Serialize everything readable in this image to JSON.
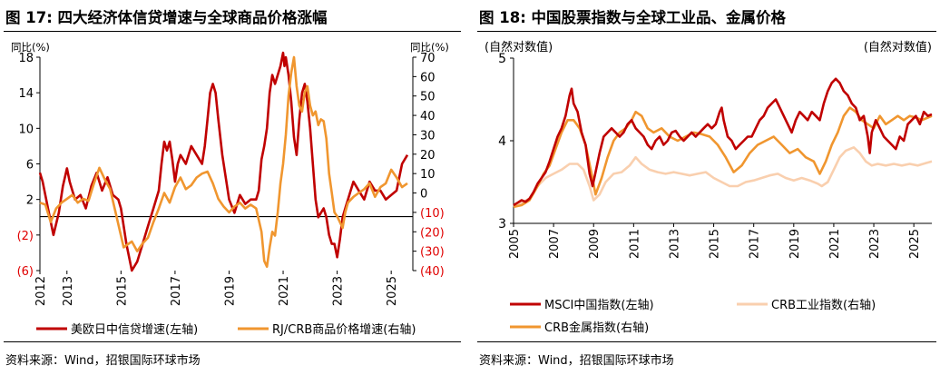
{
  "left_panel": {
    "title": "图 17: 四大经济体信贷增速与全球商品价格涨幅",
    "source": "资料来源：Wind，招银国际环球市场"
  },
  "right_panel": {
    "title": "图 18: 中国股票指数与全球工业品、金属价格",
    "source": "资料来源：Wind，招银国际环球市场"
  },
  "chart_data": [
    {
      "type": "line",
      "title": "",
      "ylabel_left": "同比(%)",
      "ylabel_right": "同比(%)",
      "ylim_left": [
        -6,
        18
      ],
      "ylim_right": [
        -40,
        70
      ],
      "left_ticks": [
        18,
        14,
        10,
        6,
        2,
        -2,
        -6
      ],
      "left_tick_labels": [
        "18",
        "14",
        "10",
        "6",
        "2",
        "(2)",
        "(6)"
      ],
      "right_ticks": [
        70,
        60,
        50,
        40,
        30,
        20,
        10,
        0,
        -10,
        -20,
        -30,
        -40
      ],
      "right_tick_labels": [
        "70",
        "60",
        "50",
        "40",
        "30",
        "20",
        "10",
        "0",
        "(10)",
        "(20)",
        "(30)",
        "(40)"
      ],
      "negative_color": "#e00000",
      "xlim": [
        2012.0,
        2025.8
      ],
      "x_ticks": [
        2012,
        2013,
        2015,
        2017,
        2019,
        2021,
        2023,
        2025
      ],
      "grid": false,
      "legend_position": "bottom",
      "series": [
        {
          "name": "美欧日中信贷增速(左轴)",
          "axis": "left",
          "color": "#c00000",
          "x": [
            2012.0,
            2012.1,
            2012.3,
            2012.5,
            2012.7,
            2012.85,
            2013.0,
            2013.1,
            2013.3,
            2013.5,
            2013.7,
            2013.9,
            2014.1,
            2014.3,
            2014.5,
            2014.7,
            2014.9,
            2015.0,
            2015.1,
            2015.2,
            2015.4,
            2015.6,
            2015.8,
            2016.0,
            2016.2,
            2016.4,
            2016.5,
            2016.6,
            2016.7,
            2016.8,
            2016.9,
            2017.0,
            2017.1,
            2017.2,
            2017.4,
            2017.6,
            2017.8,
            2018.0,
            2018.1,
            2018.2,
            2018.3,
            2018.4,
            2018.5,
            2018.6,
            2018.75,
            2018.9,
            2019.0,
            2019.2,
            2019.4,
            2019.6,
            2019.8,
            2020.0,
            2020.1,
            2020.2,
            2020.3,
            2020.4,
            2020.5,
            2020.6,
            2020.7,
            2020.8,
            2020.9,
            2021.0,
            2021.05,
            2021.1,
            2021.2,
            2021.3,
            2021.4,
            2021.5,
            2021.6,
            2021.7,
            2021.8,
            2021.9,
            2022.0,
            2022.1,
            2022.2,
            2022.3,
            2022.4,
            2022.5,
            2022.6,
            2022.7,
            2022.8,
            2022.9,
            2023.0,
            2023.1,
            2023.2,
            2023.3,
            2023.4,
            2023.5,
            2023.6,
            2023.8,
            2024.0,
            2024.2,
            2024.4,
            2024.6,
            2024.8,
            2025.0,
            2025.2,
            2025.4,
            2025.6
          ],
          "y": [
            5.0,
            4.0,
            1.0,
            -2.0,
            0.5,
            3.5,
            5.5,
            4.0,
            2.0,
            2.5,
            1.0,
            3.5,
            5.0,
            3.0,
            4.5,
            2.5,
            2.0,
            1.0,
            -1.0,
            -3.0,
            -6.0,
            -5.0,
            -3.0,
            -1.0,
            1.0,
            3.0,
            6.0,
            8.5,
            7.5,
            8.5,
            6.5,
            4.0,
            6.0,
            7.0,
            6.0,
            8.0,
            7.0,
            6.0,
            8.0,
            11.0,
            14.0,
            15.0,
            14.0,
            11.0,
            7.0,
            4.0,
            2.0,
            0.5,
            2.5,
            1.5,
            2.0,
            2.0,
            3.0,
            6.5,
            8.0,
            10.0,
            14.0,
            16.0,
            15.0,
            16.0,
            17.0,
            18.5,
            17.0,
            18.0,
            16.0,
            13.0,
            9.0,
            7.0,
            11.0,
            14.0,
            15.0,
            13.0,
            10.0,
            6.0,
            2.0,
            0.0,
            0.5,
            1.0,
            0.0,
            -2.0,
            -3.0,
            -3.0,
            -4.5,
            -2.5,
            0.0,
            1.0,
            2.0,
            3.0,
            4.0,
            3.0,
            2.0,
            4.0,
            3.0,
            3.0,
            2.0,
            2.5,
            3.0,
            6.0,
            7.0
          ]
        },
        {
          "name": "RJ/CRB商品价格增速(右轴)",
          "axis": "right",
          "color": "#f0962f",
          "x": [
            2012.0,
            2012.2,
            2012.4,
            2012.6,
            2012.8,
            2013.0,
            2013.2,
            2013.4,
            2013.6,
            2013.8,
            2014.0,
            2014.2,
            2014.4,
            2014.6,
            2014.8,
            2015.0,
            2015.1,
            2015.2,
            2015.4,
            2015.6,
            2015.8,
            2016.0,
            2016.2,
            2016.4,
            2016.6,
            2016.8,
            2017.0,
            2017.2,
            2017.4,
            2017.6,
            2017.8,
            2018.0,
            2018.2,
            2018.4,
            2018.6,
            2018.8,
            2019.0,
            2019.2,
            2019.4,
            2019.6,
            2019.8,
            2020.0,
            2020.2,
            2020.3,
            2020.4,
            2020.5,
            2020.6,
            2020.7,
            2020.8,
            2020.9,
            2021.0,
            2021.1,
            2021.2,
            2021.3,
            2021.4,
            2021.5,
            2021.6,
            2021.7,
            2021.8,
            2021.9,
            2022.0,
            2022.1,
            2022.2,
            2022.3,
            2022.4,
            2022.5,
            2022.6,
            2022.7,
            2022.8,
            2022.9,
            2023.0,
            2023.1,
            2023.2,
            2023.3,
            2023.4,
            2023.6,
            2023.8,
            2024.0,
            2024.2,
            2024.4,
            2024.6,
            2024.8,
            2025.0,
            2025.2,
            2025.4,
            2025.6
          ],
          "y": [
            -5.0,
            -6.0,
            -15.0,
            -8.0,
            -5.0,
            -3.0,
            -1.0,
            -5.0,
            -3.0,
            -4.0,
            5.0,
            13.0,
            7.0,
            2.0,
            -10.0,
            -22.0,
            -28.0,
            -27.0,
            -25.0,
            -30.0,
            -26.0,
            -23.0,
            -15.0,
            -8.0,
            0.0,
            -5.0,
            3.0,
            8.0,
            2.0,
            4.0,
            8.0,
            10.0,
            11.0,
            5.0,
            -3.0,
            -7.0,
            -10.0,
            -7.0,
            -5.0,
            -8.0,
            -6.0,
            -8.0,
            -20.0,
            -35.0,
            -38.0,
            -28.0,
            -20.0,
            -22.0,
            -10.0,
            5.0,
            15.0,
            30.0,
            50.0,
            62.0,
            70.0,
            55.0,
            45.0,
            42.0,
            52.0,
            55.0,
            45.0,
            40.0,
            42.0,
            35.0,
            38.0,
            37.0,
            28.0,
            10.0,
            0.0,
            -10.0,
            -12.0,
            -15.0,
            -18.0,
            -10.0,
            -5.0,
            -2.0,
            0.0,
            2.0,
            5.0,
            -2.0,
            3.0,
            5.0,
            12.0,
            8.0,
            3.0,
            5.0
          ]
        }
      ]
    },
    {
      "type": "line",
      "title": "",
      "ylabel_left": "(自然对数值)",
      "ylabel_right": "(自然对数值)",
      "ylim": [
        3,
        5
      ],
      "y_ticks": [
        3,
        4,
        5
      ],
      "xlim": [
        2005.0,
        2025.9
      ],
      "x_ticks": [
        2005,
        2007,
        2009,
        2011,
        2013,
        2015,
        2017,
        2019,
        2021,
        2023,
        2025
      ],
      "grid": false,
      "legend_position": "bottom",
      "series": [
        {
          "name": "MSCI中国指数(左轴)",
          "axis": "left",
          "color": "#c00000",
          "x": [
            2005.0,
            2005.2,
            2005.4,
            2005.6,
            2005.8,
            2006.0,
            2006.2,
            2006.4,
            2006.6,
            2006.8,
            2007.0,
            2007.2,
            2007.4,
            2007.6,
            2007.8,
            2007.9,
            2008.0,
            2008.2,
            2008.4,
            2008.6,
            2008.8,
            2008.95,
            2009.1,
            2009.3,
            2009.5,
            2009.7,
            2009.9,
            2010.1,
            2010.3,
            2010.5,
            2010.7,
            2010.9,
            2011.1,
            2011.3,
            2011.5,
            2011.7,
            2011.9,
            2012.1,
            2012.3,
            2012.5,
            2012.7,
            2012.9,
            2013.1,
            2013.3,
            2013.5,
            2013.7,
            2013.9,
            2014.1,
            2014.3,
            2014.5,
            2014.7,
            2014.9,
            2015.1,
            2015.3,
            2015.4,
            2015.5,
            2015.7,
            2015.9,
            2016.1,
            2016.3,
            2016.5,
            2016.7,
            2016.9,
            2017.1,
            2017.3,
            2017.5,
            2017.7,
            2017.9,
            2018.1,
            2018.3,
            2018.5,
            2018.7,
            2018.9,
            2019.1,
            2019.3,
            2019.5,
            2019.7,
            2019.9,
            2020.1,
            2020.3,
            2020.5,
            2020.7,
            2020.9,
            2021.1,
            2021.3,
            2021.5,
            2021.7,
            2021.9,
            2022.1,
            2022.3,
            2022.5,
            2022.7,
            2022.8,
            2022.9,
            2023.1,
            2023.3,
            2023.5,
            2023.7,
            2023.9,
            2024.1,
            2024.3,
            2024.5,
            2024.7,
            2024.9,
            2025.1,
            2025.3,
            2025.5,
            2025.7,
            2025.9
          ],
          "y": [
            3.22,
            3.25,
            3.28,
            3.26,
            3.3,
            3.38,
            3.48,
            3.55,
            3.62,
            3.75,
            3.9,
            4.05,
            4.15,
            4.3,
            4.55,
            4.63,
            4.45,
            4.35,
            4.1,
            3.95,
            3.6,
            3.45,
            3.62,
            3.85,
            4.05,
            4.1,
            4.15,
            4.1,
            4.05,
            4.1,
            4.2,
            4.25,
            4.15,
            4.1,
            4.05,
            3.95,
            3.9,
            4.0,
            4.05,
            3.95,
            4.0,
            4.1,
            4.12,
            4.05,
            4.0,
            4.05,
            4.1,
            4.05,
            4.1,
            4.15,
            4.2,
            4.15,
            4.2,
            4.35,
            4.4,
            4.25,
            4.05,
            4.0,
            3.9,
            3.95,
            4.0,
            4.05,
            4.05,
            4.15,
            4.25,
            4.3,
            4.4,
            4.45,
            4.5,
            4.4,
            4.3,
            4.2,
            4.1,
            4.25,
            4.35,
            4.3,
            4.25,
            4.35,
            4.3,
            4.25,
            4.45,
            4.6,
            4.7,
            4.75,
            4.7,
            4.6,
            4.55,
            4.45,
            4.4,
            4.25,
            4.3,
            4.05,
            3.85,
            4.1,
            4.25,
            4.15,
            4.05,
            4.0,
            3.95,
            3.9,
            4.05,
            4.0,
            4.2,
            4.25,
            4.3,
            4.2,
            4.35,
            4.3,
            4.32
          ]
        },
        {
          "name": "CRB工业指数(右轴)",
          "axis": "right",
          "color": "#f9cfae",
          "x": [
            2005.0,
            2005.4,
            2005.8,
            2006.2,
            2006.6,
            2007.0,
            2007.4,
            2007.8,
            2008.2,
            2008.5,
            2008.8,
            2009.0,
            2009.3,
            2009.6,
            2010.0,
            2010.4,
            2010.8,
            2011.1,
            2011.4,
            2011.8,
            2012.2,
            2012.6,
            2013.0,
            2013.4,
            2013.8,
            2014.2,
            2014.6,
            2015.0,
            2015.4,
            2015.8,
            2016.2,
            2016.6,
            2017.0,
            2017.4,
            2017.8,
            2018.2,
            2018.6,
            2019.0,
            2019.4,
            2019.8,
            2020.2,
            2020.4,
            2020.7,
            2021.0,
            2021.3,
            2021.6,
            2022.0,
            2022.3,
            2022.6,
            2022.9,
            2023.2,
            2023.6,
            2024.0,
            2024.4,
            2024.8,
            2025.2,
            2025.6,
            2025.9
          ],
          "y": [
            3.2,
            3.25,
            3.3,
            3.45,
            3.55,
            3.6,
            3.65,
            3.72,
            3.72,
            3.65,
            3.45,
            3.28,
            3.35,
            3.5,
            3.6,
            3.62,
            3.7,
            3.8,
            3.72,
            3.65,
            3.62,
            3.6,
            3.62,
            3.6,
            3.58,
            3.6,
            3.62,
            3.55,
            3.5,
            3.45,
            3.45,
            3.5,
            3.52,
            3.55,
            3.58,
            3.6,
            3.55,
            3.52,
            3.55,
            3.52,
            3.48,
            3.45,
            3.5,
            3.65,
            3.8,
            3.88,
            3.92,
            3.85,
            3.75,
            3.7,
            3.72,
            3.7,
            3.72,
            3.7,
            3.72,
            3.7,
            3.73,
            3.75
          ]
        },
        {
          "name": "CRB金属指数(右轴)",
          "axis": "right",
          "color": "#f0962f",
          "x": [
            2005.0,
            2005.4,
            2005.8,
            2006.2,
            2006.5,
            2006.8,
            2007.1,
            2007.4,
            2007.7,
            2008.0,
            2008.3,
            2008.6,
            2008.9,
            2009.1,
            2009.4,
            2009.7,
            2010.0,
            2010.3,
            2010.6,
            2010.9,
            2011.1,
            2011.4,
            2011.7,
            2012.0,
            2012.4,
            2012.8,
            2013.2,
            2013.6,
            2014.0,
            2014.4,
            2014.8,
            2015.2,
            2015.6,
            2016.0,
            2016.4,
            2016.8,
            2017.2,
            2017.6,
            2018.0,
            2018.4,
            2018.8,
            2019.2,
            2019.6,
            2020.0,
            2020.3,
            2020.6,
            2020.9,
            2021.2,
            2021.5,
            2021.8,
            2022.1,
            2022.4,
            2022.7,
            2023.0,
            2023.3,
            2023.6,
            2023.9,
            2024.2,
            2024.5,
            2024.8,
            2025.1,
            2025.4,
            2025.7,
            2025.9
          ],
          "y": [
            3.2,
            3.22,
            3.28,
            3.45,
            3.6,
            3.7,
            3.9,
            4.1,
            4.25,
            4.25,
            4.15,
            3.95,
            3.6,
            3.35,
            3.55,
            3.8,
            4.0,
            4.1,
            4.15,
            4.25,
            4.35,
            4.3,
            4.15,
            4.1,
            4.15,
            4.05,
            4.0,
            4.05,
            4.1,
            4.08,
            4.05,
            3.95,
            3.8,
            3.62,
            3.7,
            3.85,
            3.95,
            4.0,
            4.05,
            3.95,
            3.85,
            3.9,
            3.8,
            3.75,
            3.6,
            3.75,
            3.95,
            4.1,
            4.3,
            4.4,
            4.35,
            4.25,
            4.2,
            4.15,
            4.3,
            4.2,
            4.25,
            4.3,
            4.25,
            4.3,
            4.28,
            4.25,
            4.28,
            4.3
          ]
        }
      ]
    }
  ]
}
